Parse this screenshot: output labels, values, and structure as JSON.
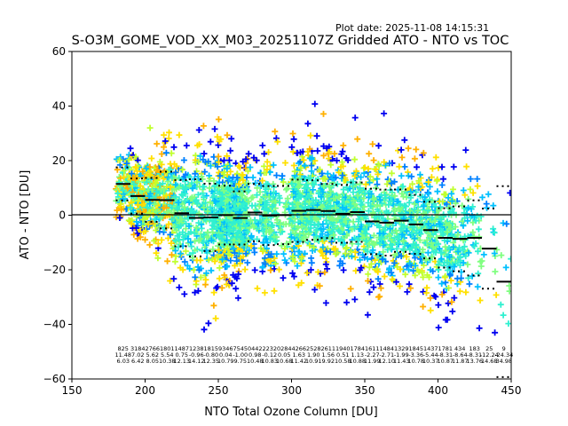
{
  "plot_date": "Plot date: 2025-11-08 14:15:31",
  "chart_data": {
    "type": "scatter",
    "title": "S-O3M_GOME_VOD_XX_M03_20251107Z Gridded ATO - NTO vs TOC",
    "xlabel": "NTO Total Ozone Column [DU]",
    "ylabel": "ATO - NTO [DU]",
    "xlim": [
      150,
      450
    ],
    "ylim": [
      -60,
      60
    ],
    "xticks": [
      "150",
      "200",
      "250",
      "300",
      "350",
      "400",
      "450"
    ],
    "yticks": [
      "60",
      "40",
      "20",
      "0",
      "−20",
      "−40",
      "−60"
    ],
    "xtick_values": [
      150,
      200,
      250,
      300,
      350,
      400,
      450
    ],
    "ytick_values": [
      60,
      40,
      20,
      0,
      -20,
      -40,
      -60
    ],
    "grid": false,
    "zero_line": 0,
    "marker": "plus",
    "colormap_colors": [
      "#0000f0",
      "#0080ff",
      "#00c0ff",
      "#30f0d0",
      "#80ff80",
      "#c0ff30",
      "#ffe000",
      "#ffb000"
    ],
    "bin_width": 10,
    "bins": {
      "x_start": [
        180,
        190,
        200,
        210,
        220,
        230,
        240,
        250,
        260,
        270,
        280,
        290,
        300,
        310,
        320,
        330,
        340,
        350,
        360,
        370,
        380,
        390,
        400,
        410,
        420,
        430,
        440
      ],
      "count": [
        "825",
        "3184",
        "2766",
        "1801",
        "1487",
        "1238",
        "1815",
        "9346",
        "7545",
        "0442",
        "2232",
        "0284",
        "4266",
        "2528",
        "2611",
        "1940",
        "1784",
        "1611",
        "1484",
        "1329",
        "1845",
        "1437",
        "1781",
        "434",
        "183",
        "25",
        "9"
      ],
      "mean": [
        11.48,
        7.02,
        5.62,
        5.54,
        0.75,
        -0.96,
        -0.8,
        0.04,
        -1.0,
        0.98,
        -0.12,
        0.05,
        1.63,
        1.9,
        1.56,
        0.51,
        1.13,
        -2.27,
        -2.71,
        -1.99,
        -3.36,
        -5.44,
        -8.31,
        -8.64,
        -8.31,
        -12.24,
        -24.34
      ],
      "std": [
        6.03,
        6.42,
        8.05,
        10.38,
        12.13,
        14.12,
        12.35,
        10.79,
        9.75,
        10.48,
        10.83,
        10.68,
        11.42,
        10.91,
        9.92,
        10.58,
        10.88,
        11.99,
        12.1,
        11.43,
        10.78,
        10.37,
        10.87,
        11.87,
        13.76,
        14.68,
        34.98
      ]
    },
    "scatter_summary": "Dense cloud of gridded points coloured by a cool-to-warm colormap; main body spans ~180-440 DU with differences mostly between -30 and +30 DU, sparse outliers reaching +/-60 DU."
  }
}
